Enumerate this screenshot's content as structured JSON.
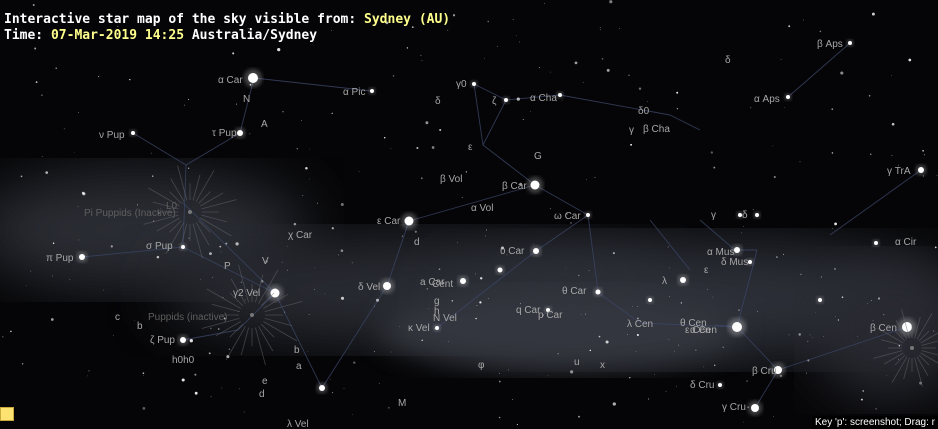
{
  "header": {
    "line1_prefix": "Interactive star map of the sky visible from:",
    "location": "Sydney (AU)",
    "line2_prefix": "Time:",
    "datetime": "07-Mar-2019 14:25",
    "timezone": "Australia/Sydney"
  },
  "hint": "Key 'p': screenshot; Drag: r",
  "star_labels": [
    "α Car",
    "N",
    "A",
    "α Pic",
    "ν Pup",
    "τ Pup",
    "L0",
    "Pi Puppids (Inactive)",
    "σ Pup",
    "π Pup",
    "P",
    "V",
    "γ2 Vel",
    "c",
    "b",
    "Puppids (inactive)",
    "ζ Pup",
    "h0h0",
    "b",
    "a",
    "e",
    "d",
    "β Aps",
    "δ",
    "α Aps",
    "γ0",
    "δ",
    "ζ",
    "α Cha",
    "δ0",
    "γ",
    "β Cha",
    "ε",
    "G",
    "β Vol",
    "β Car",
    "α Vol",
    "ε Car",
    "χ Car",
    "d",
    "δ Vel",
    "a Car",
    "Cent",
    "g",
    "h",
    "N Vel",
    "κ Vel",
    "υ Car",
    "ω Car",
    "θ Car",
    "q Car",
    "p Car",
    "φ",
    "u",
    "x",
    "λ",
    "γ TrA",
    "α Cir",
    "γ",
    "δ",
    "α Mus",
    "δ Mus",
    "ε",
    "λ Cen",
    "θ Cen",
    "ε Cen",
    "δ Cru",
    "β Cru",
    "γ Cru",
    "β Cen",
    "α Cen",
    "M",
    "λ Vel"
  ],
  "palette": {
    "sky": "#050507",
    "milky_way": "#9aa0b0",
    "constellation_line": "#3b4667",
    "star": "#ffffff",
    "highlight": "#ffff8c",
    "corner_widget": "#ffe372"
  },
  "icons": {
    "corner": "toggle-square-icon"
  }
}
